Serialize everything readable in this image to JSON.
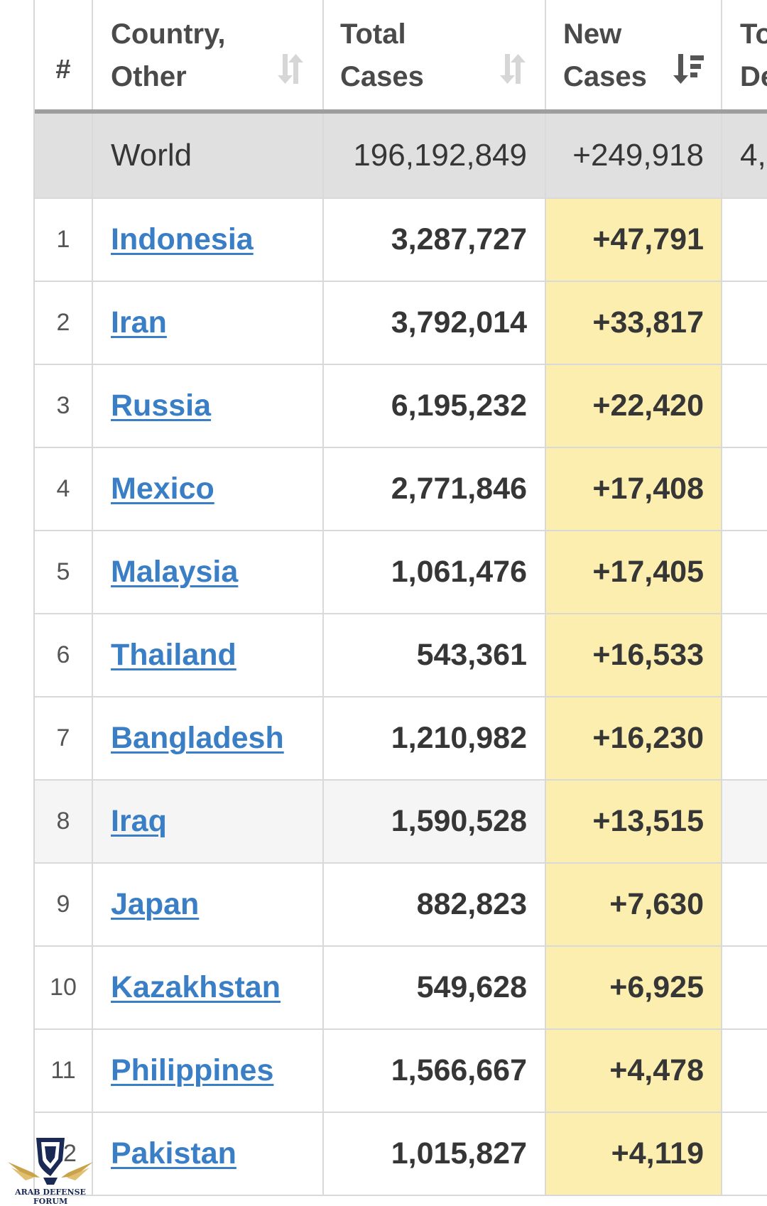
{
  "header": {
    "rank": "#",
    "country": "Country,\nOther",
    "total_cases": "Total\nCases",
    "new_cases": "New\nCases",
    "total_deaths": "To\nDe"
  },
  "world": {
    "name": "World",
    "total_cases": "196,192,849",
    "new_cases": "+249,918",
    "total_deaths": "4,"
  },
  "rows": [
    {
      "rank": "1",
      "country": "Indonesia",
      "total_cases": "3,287,727",
      "new_cases": "+47,791"
    },
    {
      "rank": "2",
      "country": "Iran",
      "total_cases": "3,792,014",
      "new_cases": "+33,817"
    },
    {
      "rank": "3",
      "country": "Russia",
      "total_cases": "6,195,232",
      "new_cases": "+22,420"
    },
    {
      "rank": "4",
      "country": "Mexico",
      "total_cases": "2,771,846",
      "new_cases": "+17,408"
    },
    {
      "rank": "5",
      "country": "Malaysia",
      "total_cases": "1,061,476",
      "new_cases": "+17,405"
    },
    {
      "rank": "6",
      "country": "Thailand",
      "total_cases": "543,361",
      "new_cases": "+16,533"
    },
    {
      "rank": "7",
      "country": "Bangladesh",
      "total_cases": "1,210,982",
      "new_cases": "+16,230"
    },
    {
      "rank": "8",
      "country": "Iraq",
      "total_cases": "1,590,528",
      "new_cases": "+13,515"
    },
    {
      "rank": "9",
      "country": "Japan",
      "total_cases": "882,823",
      "new_cases": "+7,630"
    },
    {
      "rank": "10",
      "country": "Kazakhstan",
      "total_cases": "549,628",
      "new_cases": "+6,925"
    },
    {
      "rank": "11",
      "country": "Philippines",
      "total_cases": "1,566,667",
      "new_cases": "+4,478"
    },
    {
      "rank": "12",
      "country": "Pakistan",
      "total_cases": "1,015,827",
      "new_cases": "+4,119"
    }
  ],
  "logo": {
    "text": "ARAB DEFENSE FORUM",
    "mark": "DA"
  },
  "colors": {
    "link": "#3a7fc6",
    "new_cases_highlight": "#fceeae",
    "world_row": "#e0e0e0"
  }
}
